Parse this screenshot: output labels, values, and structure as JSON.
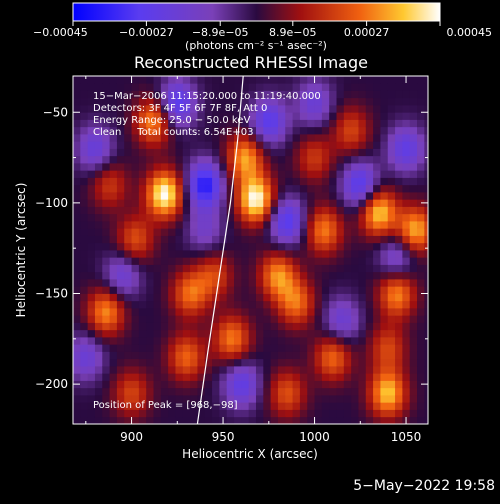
{
  "chart_data": {
    "type": "heatmap",
    "title": "Reconstructed RHESSI Image",
    "xlabel": "Heliocentric X (arcsec)",
    "ylabel": "Heliocentric Y (arcsec)",
    "xlim": [
      868,
      1062
    ],
    "ylim": [
      -222,
      -30
    ],
    "x_ticks": [
      900,
      950,
      1000,
      1050
    ],
    "y_ticks": [
      -50,
      -100,
      -150,
      -200
    ],
    "x_tick_labels": [
      "900",
      "950",
      "1000",
      "1050"
    ],
    "y_tick_labels": [
      "−50",
      "−100",
      "−150",
      "−200"
    ],
    "colorbar": {
      "range": [
        -0.00045,
        0.00045
      ],
      "ticks": [
        -0.00045,
        -0.00027,
        -8.9e-05,
        8.9e-05,
        0.00027,
        0.00045
      ],
      "tick_labels": [
        "−0.00045",
        "−0.00027",
        "−8.9e−05",
        "8.9e−05",
        "0.00027",
        "0.00045"
      ],
      "unit_label": "(photons cm⁻² s⁻¹ asec⁻²)"
    },
    "annotations": [
      "15−Mar−2006 11:15:20.000 to 11:19:40.000",
      "Detectors: 3F 4F 5F 6F 7F 8F, Att 0",
      "Energy Range: 25.0 − 50.0 keV",
      "Clean     Total counts: 6.54E+03"
    ],
    "peak_label": "Position of Peak = [968,−98]",
    "peak": [
      968,
      -98
    ],
    "limb_curve": [
      [
        936,
        -222
      ],
      [
        942,
        -180
      ],
      [
        948,
        -140
      ],
      [
        954,
        -100
      ],
      [
        958,
        -65
      ],
      [
        961,
        -30
      ]
    ],
    "blobs": [
      {
        "x": 918,
        "y": -95,
        "value": 0.00045
      },
      {
        "x": 912,
        "y": -55,
        "value": 0.0003
      },
      {
        "x": 902,
        "y": -120,
        "value": 0.00022
      },
      {
        "x": 886,
        "y": -160,
        "value": 0.0003
      },
      {
        "x": 888,
        "y": -90,
        "value": 0.00018
      },
      {
        "x": 968,
        "y": -98,
        "value": 0.00045
      },
      {
        "x": 962,
        "y": -75,
        "value": 0.00032
      },
      {
        "x": 980,
        "y": -140,
        "value": 0.0003
      },
      {
        "x": 990,
        "y": -155,
        "value": 0.00026
      },
      {
        "x": 945,
        "y": -140,
        "value": 0.0002
      },
      {
        "x": 930,
        "y": -185,
        "value": 0.00025
      },
      {
        "x": 955,
        "y": -175,
        "value": 0.00028
      },
      {
        "x": 1005,
        "y": -115,
        "value": 0.00028
      },
      {
        "x": 1020,
        "y": -60,
        "value": 0.0002
      },
      {
        "x": 1035,
        "y": -105,
        "value": 0.00038
      },
      {
        "x": 1045,
        "y": -150,
        "value": 0.0003
      },
      {
        "x": 1055,
        "y": -115,
        "value": 0.00034
      },
      {
        "x": 1010,
        "y": -185,
        "value": 0.00026
      },
      {
        "x": 1040,
        "y": -205,
        "value": 0.00036
      },
      {
        "x": 985,
        "y": -205,
        "value": 0.00022
      },
      {
        "x": 900,
        "y": -205,
        "value": 0.0002
      },
      {
        "x": 1000,
        "y": -75,
        "value": 0.00018
      },
      {
        "x": 932,
        "y": -150,
        "value": 0.00026
      },
      {
        "x": 1040,
        "y": -180,
        "value": 0.0002
      },
      {
        "x": 925,
        "y": -45,
        "value": -0.0003
      },
      {
        "x": 880,
        "y": -70,
        "value": -0.00022
      },
      {
        "x": 940,
        "y": -90,
        "value": -0.00038
      },
      {
        "x": 895,
        "y": -140,
        "value": -0.0002
      },
      {
        "x": 985,
        "y": -110,
        "value": -0.0003
      },
      {
        "x": 975,
        "y": -55,
        "value": -0.00028
      },
      {
        "x": 1025,
        "y": -90,
        "value": -0.0003
      },
      {
        "x": 1050,
        "y": -70,
        "value": -0.00025
      },
      {
        "x": 1045,
        "y": -130,
        "value": -0.0002
      },
      {
        "x": 960,
        "y": -200,
        "value": -0.00025
      },
      {
        "x": 1015,
        "y": -165,
        "value": -0.0002
      },
      {
        "x": 875,
        "y": -185,
        "value": -0.0002
      },
      {
        "x": 940,
        "y": -115,
        "value": -0.00015
      },
      {
        "x": 1000,
        "y": -45,
        "value": -0.0002
      }
    ]
  },
  "footer": {
    "date": "5−May−2022 19:58"
  }
}
